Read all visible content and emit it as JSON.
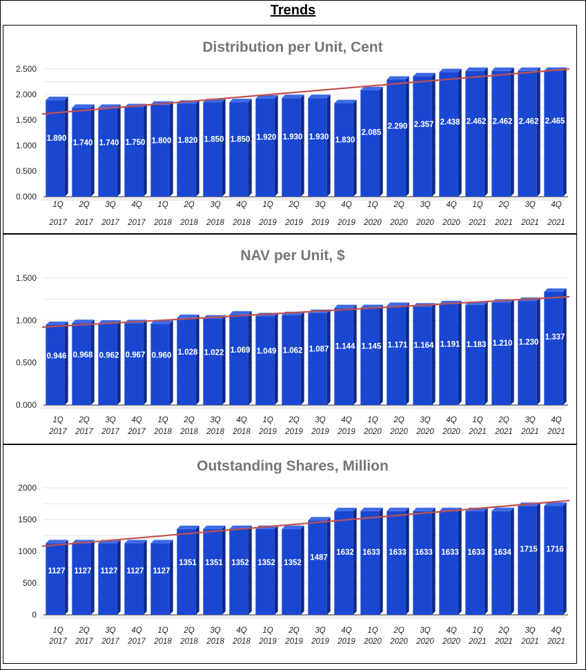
{
  "page_title": "Trends",
  "colors": {
    "bar_front": "#1a47d1",
    "bar_side": "#0d2a8e",
    "bar_top": "#3f6ae6",
    "trend": "#c0504d"
  },
  "chart_data": [
    {
      "type": "bar",
      "title": "Distribution per Unit, Cent",
      "categories": [
        "1Q 2017",
        "2Q 2017",
        "3Q 2017",
        "4Q 2017",
        "1Q 2018",
        "2Q 2018",
        "3Q 2018",
        "4Q 2018",
        "1Q 2019",
        "2Q 2019",
        "3Q 2019",
        "4Q 2019",
        "1Q 2020",
        "2Q 2020",
        "3Q 2020",
        "4Q 2020",
        "1Q 2021",
        "2Q 2021",
        "3Q 2021",
        "4Q 2021"
      ],
      "values": [
        1.89,
        1.74,
        1.74,
        1.75,
        1.8,
        1.82,
        1.85,
        1.85,
        1.92,
        1.93,
        1.93,
        1.83,
        2.085,
        2.29,
        2.357,
        2.438,
        2.462,
        2.462,
        2.462,
        2.465
      ],
      "value_labels": [
        "1.890",
        "1.740",
        "1.740",
        "1.750",
        "1.800",
        "1.820",
        "1.850",
        "1.850",
        "1.920",
        "1.930",
        "1.930",
        "1.830",
        "2.085",
        "2.290",
        "2.357",
        "2.438",
        "2.462",
        "2.462",
        "2.462",
        "2.465"
      ],
      "yticks": [
        "0.000",
        "0.500",
        "1.000",
        "1.500",
        "2.000",
        "2.500"
      ],
      "ytick_values": [
        0,
        0.5,
        1.0,
        1.5,
        2.0,
        2.5
      ],
      "ylim": [
        0,
        2.5
      ],
      "trendline": [
        1.62,
        2.5
      ],
      "xlabel": "",
      "ylabel": ""
    },
    {
      "type": "bar",
      "title": "NAV per Unit, $",
      "categories": [
        "1Q 2017",
        "2Q 2017",
        "3Q 2017",
        "4Q 2017",
        "1Q 2018",
        "2Q 2018",
        "3Q 2018",
        "4Q 2018",
        "1Q 2019",
        "2Q 2019",
        "3Q 2019",
        "4Q 2019",
        "1Q 2020",
        "2Q 2020",
        "3Q 2020",
        "4Q 2020",
        "1Q 2021",
        "2Q 2021",
        "3Q 2021",
        "4Q 2021"
      ],
      "values": [
        0.946,
        0.968,
        0.962,
        0.967,
        0.96,
        1.028,
        1.022,
        1.069,
        1.049,
        1.062,
        1.087,
        1.144,
        1.145,
        1.171,
        1.164,
        1.191,
        1.183,
        1.21,
        1.23,
        1.337
      ],
      "value_labels": [
        "0.946",
        "0.968",
        "0.962",
        "0.967",
        "0.960",
        "1.028",
        "1.022",
        "1.069",
        "1.049",
        "1.062",
        "1.087",
        "1.144",
        "1.145",
        "1.171",
        "1.164",
        "1.191",
        "1.183",
        "1.210",
        "1.230",
        "1.337"
      ],
      "yticks": [
        "0.000",
        "0.500",
        "1.000",
        "1.500"
      ],
      "ytick_values": [
        0,
        0.5,
        1.0,
        1.5
      ],
      "ylim": [
        0,
        1.5
      ],
      "trendline": [
        0.92,
        1.28
      ],
      "xlabel": "",
      "ylabel": ""
    },
    {
      "type": "bar",
      "title": "Outstanding Shares, Million",
      "categories": [
        "1Q 2017",
        "2Q 2017",
        "3Q 2017",
        "4Q 2017",
        "1Q 2018",
        "2Q 2018",
        "3Q 2018",
        "4Q 2018",
        "1Q 2019",
        "2Q 2019",
        "3Q 2019",
        "4Q 2019",
        "1Q 2020",
        "2Q 2020",
        "3Q 2020",
        "4Q 2020",
        "1Q 2021",
        "2Q 2021",
        "3Q 2021",
        "4Q 2021"
      ],
      "values": [
        1127,
        1127,
        1127,
        1127,
        1127,
        1351,
        1351,
        1352,
        1352,
        1352,
        1487,
        1632,
        1633,
        1633,
        1633,
        1633,
        1633,
        1634,
        1715,
        1716
      ],
      "value_labels": [
        "1127",
        "1127",
        "1127",
        "1127",
        "1127",
        "1351",
        "1351",
        "1352",
        "1352",
        "1352",
        "1487",
        "1632",
        "1633",
        "1633",
        "1633",
        "1633",
        "1633",
        "1634",
        "1715",
        "1716"
      ],
      "yticks": [
        "0",
        "500",
        "1000",
        "1500",
        "2000"
      ],
      "ytick_values": [
        0,
        500,
        1000,
        1500,
        2000
      ],
      "ylim": [
        0,
        2000
      ],
      "trendline": [
        1080,
        1800
      ],
      "xlabel": "",
      "ylabel": ""
    }
  ]
}
